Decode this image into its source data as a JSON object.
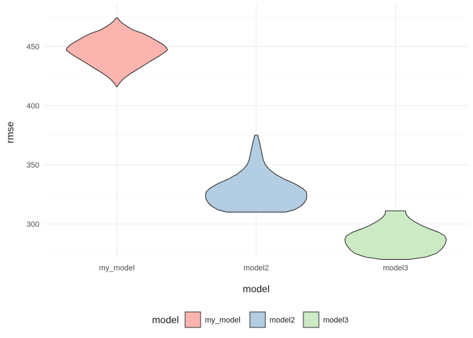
{
  "chart_data": {
    "type": "violin",
    "xlabel": "model",
    "ylabel": "rmse",
    "categories": [
      "my_model",
      "model2",
      "model3"
    ],
    "yticks": [
      300,
      350,
      400,
      450
    ],
    "ylim": [
      265,
      480
    ],
    "grid": true,
    "legend": {
      "title": "model",
      "placement": "bottom",
      "entries": [
        "my_model",
        "model2",
        "model3"
      ]
    },
    "series": [
      {
        "category": "my_model",
        "color": "#FBB4AE",
        "min": 416,
        "max": 474,
        "profile": [
          [
            416,
            0.01
          ],
          [
            419,
            0.05
          ],
          [
            423,
            0.14
          ],
          [
            427,
            0.27
          ],
          [
            431,
            0.42
          ],
          [
            435,
            0.57
          ],
          [
            439,
            0.72
          ],
          [
            442,
            0.84
          ],
          [
            445,
            0.94
          ],
          [
            447,
            1.0
          ],
          [
            449,
            0.98
          ],
          [
            452,
            0.9
          ],
          [
            455,
            0.78
          ],
          [
            458,
            0.66
          ],
          [
            461,
            0.52
          ],
          [
            464,
            0.32
          ],
          [
            467,
            0.2
          ],
          [
            470,
            0.1
          ],
          [
            472,
            0.05
          ],
          [
            474,
            0.02
          ]
        ]
      },
      {
        "category": "model2",
        "color": "#B3CDE3",
        "min": 310,
        "max": 375,
        "profile": [
          [
            310,
            0.58
          ],
          [
            312,
            0.76
          ],
          [
            315,
            0.88
          ],
          [
            318,
            0.95
          ],
          [
            321,
            0.99
          ],
          [
            324,
            1.0
          ],
          [
            327,
            0.99
          ],
          [
            330,
            0.92
          ],
          [
            334,
            0.76
          ],
          [
            338,
            0.55
          ],
          [
            342,
            0.38
          ],
          [
            346,
            0.26
          ],
          [
            350,
            0.18
          ],
          [
            354,
            0.14
          ],
          [
            358,
            0.12
          ],
          [
            362,
            0.1
          ],
          [
            366,
            0.08
          ],
          [
            370,
            0.06
          ],
          [
            373,
            0.04
          ],
          [
            375,
            0.03
          ]
        ]
      },
      {
        "category": "model3",
        "color": "#CCEBC5",
        "min": 270,
        "max": 311,
        "profile": [
          [
            270,
            0.27
          ],
          [
            272,
            0.6
          ],
          [
            275,
            0.8
          ],
          [
            278,
            0.89
          ],
          [
            281,
            0.95
          ],
          [
            284,
            0.99
          ],
          [
            287,
            1.0
          ],
          [
            290,
            0.97
          ],
          [
            293,
            0.85
          ],
          [
            296,
            0.66
          ],
          [
            299,
            0.5
          ],
          [
            302,
            0.37
          ],
          [
            305,
            0.27
          ],
          [
            308,
            0.21
          ],
          [
            310,
            0.2
          ],
          [
            311,
            0.2
          ]
        ]
      }
    ]
  }
}
